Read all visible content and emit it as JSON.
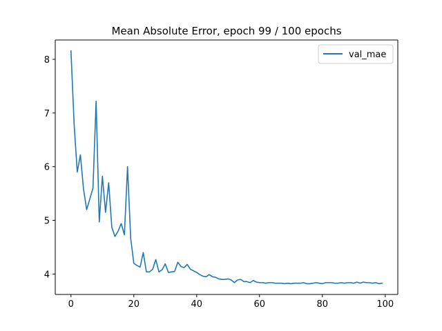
{
  "chart_data": {
    "type": "line",
    "title": "Mean Absolute Error, epoch 99 / 100 epochs",
    "xlabel": "",
    "ylabel": "",
    "xlim": [
      -5,
      104
    ],
    "ylim": [
      3.62,
      8.36
    ],
    "xticks": [
      0,
      20,
      40,
      60,
      80,
      100
    ],
    "yticks": [
      4,
      5,
      6,
      7,
      8
    ],
    "grid": false,
    "legend_position": "top-right",
    "series": [
      {
        "name": "val_mae",
        "color": "#1f77b4",
        "x": [
          0,
          1,
          2,
          3,
          4,
          5,
          6,
          7,
          8,
          9,
          10,
          11,
          12,
          13,
          14,
          15,
          16,
          17,
          18,
          19,
          20,
          21,
          22,
          23,
          24,
          25,
          26,
          27,
          28,
          29,
          30,
          31,
          32,
          33,
          34,
          35,
          36,
          37,
          38,
          39,
          40,
          41,
          42,
          43,
          44,
          45,
          46,
          47,
          48,
          49,
          50,
          51,
          52,
          53,
          54,
          55,
          56,
          57,
          58,
          59,
          60,
          61,
          62,
          63,
          64,
          65,
          66,
          67,
          68,
          69,
          70,
          71,
          72,
          73,
          74,
          75,
          76,
          77,
          78,
          79,
          80,
          81,
          82,
          83,
          84,
          85,
          86,
          87,
          88,
          89,
          90,
          91,
          92,
          93,
          94,
          95,
          96,
          97,
          98,
          99
        ],
        "values": [
          8.16,
          6.8,
          5.9,
          6.22,
          5.58,
          5.2,
          5.4,
          5.6,
          7.22,
          4.97,
          5.82,
          5.15,
          5.7,
          4.87,
          4.7,
          4.8,
          4.94,
          4.73,
          6.0,
          4.67,
          4.2,
          4.16,
          4.13,
          4.4,
          4.04,
          4.04,
          4.09,
          4.27,
          4.04,
          4.08,
          4.19,
          4.03,
          4.04,
          4.05,
          4.22,
          4.14,
          4.12,
          4.18,
          4.09,
          4.06,
          4.03,
          3.99,
          3.96,
          3.95,
          3.99,
          3.95,
          3.94,
          3.91,
          3.9,
          3.9,
          3.91,
          3.89,
          3.84,
          3.89,
          3.9,
          3.86,
          3.86,
          3.84,
          3.88,
          3.85,
          3.84,
          3.84,
          3.83,
          3.84,
          3.84,
          3.83,
          3.83,
          3.83,
          3.82,
          3.83,
          3.82,
          3.83,
          3.83,
          3.83,
          3.84,
          3.82,
          3.82,
          3.83,
          3.84,
          3.83,
          3.82,
          3.84,
          3.84,
          3.84,
          3.83,
          3.83,
          3.84,
          3.83,
          3.84,
          3.84,
          3.83,
          3.85,
          3.83,
          3.85,
          3.84,
          3.84,
          3.83,
          3.84,
          3.82,
          3.83
        ]
      }
    ]
  }
}
